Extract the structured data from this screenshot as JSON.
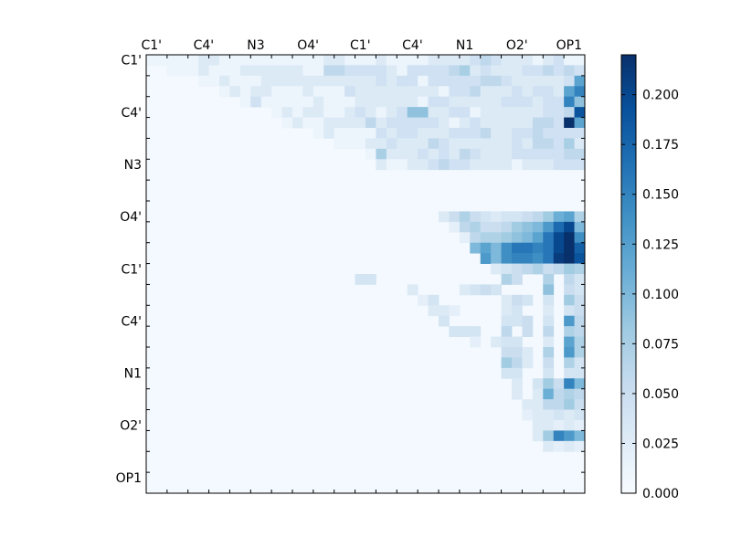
{
  "chart_data": {
    "type": "heatmap",
    "title": "",
    "xlabel": "",
    "ylabel": "",
    "x_tick_labels": [
      "C1'",
      "C4'",
      "N3",
      "O4'",
      "C1'",
      "C4'",
      "N1",
      "O2'",
      "OP1"
    ],
    "y_tick_labels": [
      "C1'",
      "C4'",
      "N3",
      "O4'",
      "C1'",
      "C4'",
      "N1",
      "O2'",
      "OP1"
    ],
    "n_cells": 42,
    "grid": false,
    "colormap": "Blues",
    "colorbar": {
      "vmin": 0.0,
      "vmax": 0.22,
      "tick_labels": [
        "0.000",
        "0.025",
        "0.050",
        "0.075",
        "0.100",
        "0.125",
        "0.150",
        "0.175",
        "0.200"
      ],
      "position": "right"
    },
    "rows": [
      "..12111112211111111112211121111222234322212311",
      "...1112111222222114433332133334523222334343",
      "....1121112222222222232331333334432222238",
      ".....12122111211132222222213342223233289",
      "......131111121112222221332222233323396",
      ".......12122112321236622331222222334A",
      "........121122224233333212322222443B8",
      ".........12111132332223334223343333",
      "..........111223222432222223244352",
      "...........152223232432223333344",
      "............21122343322221222333",
      "................................",
      "................................",
      "................................",
      "................................",
      "................................",
      "................................",
      "................................",
      "................................",
      "................................",
      "................................",
      "................................",
      "................................",
      "................................",
      "................................",
      "................................",
      "................................",
      "................................",
      "................................",
      "................................",
      "................................",
      "................................",
      "................................",
      "................................",
      "................................",
      "................................",
      "................................",
      "................................",
      "................................",
      "................................",
      "................................",
      "................................"
    ],
    "band_rows": {
      "15": "0.004,0.004,0.004,0.004,0.004,0.004,0.004,0.004,0.004,0.004,0.004,0.004,0.004,0.004,0.004,0.004,0.004,0.004,0.004,0.004,0.004,0.004,0.004,0.004,0.004,0.004,0.004,0.004,0.03,0.05,0.07,0.05,0.04,0.03,0.04,0.04,0.05,0.06,0.08,0.11,0.12,0.07",
      "16": "0.004,0.004,0.004,0.004,0.004,0.004,0.004,0.004,0.004,0.004,0.004,0.004,0.004,0.004,0.004,0.004,0.004,0.004,0.004,0.004,0.004,0.004,0.004,0.004,0.004,0.004,0.004,0.004,0.004,0.02,0.06,0.07,0.05,0.05,0.06,0.08,0.09,0.1,0.13,0.17,0.2,0.1",
      "17": "0.004,0.004,0.004,0.004,0.004,0.004,0.004,0.004,0.004,0.004,0.004,0.004,0.004,0.004,0.004,0.004,0.004,0.004,0.004,0.004,0.004,0.004,0.004,0.004,0.004,0.004,0.004,0.004,0.004,0.004,0.02,0.06,0.07,0.07,0.08,0.09,0.1,0.12,0.16,0.2,0.22,0.14",
      "18": "0.004,0.004,0.004,0.004,0.004,0.004,0.004,0.004,0.004,0.004,0.004,0.004,0.004,0.004,0.004,0.004,0.004,0.004,0.004,0.004,0.004,0.004,0.004,0.004,0.004,0.004,0.004,0.004,0.004,0.004,0.004,0.1,0.12,0.1,0.14,0.16,0.16,0.15,0.16,0.2,0.22,0.18",
      "19": "0.004,0.004,0.004,0.004,0.004,0.004,0.004,0.004,0.004,0.004,0.004,0.004,0.004,0.004,0.004,0.004,0.004,0.004,0.004,0.004,0.004,0.004,0.004,0.004,0.004,0.004,0.004,0.004,0.004,0.004,0.004,0.004,0.13,0.1,0.14,0.15,0.15,0.14,0.16,0.21,0.22,0.19",
      "20": "0.004,0.004,0.004,0.004,0.004,0.004,0.004,0.004,0.004,0.004,0.004,0.004,0.004,0.004,0.004,0.004,0.004,0.004,0.004,0.004,0.004,0.004,0.004,0.004,0.004,0.004,0.004,0.004,0.004,0.004,0.004,0.004,0.004,0.03,0.04,0.05,0.06,0.07,0.05,0.06,0.08,0.07"
    },
    "bottom_rows": {
      "21": [
        [
          20,
          0.04
        ],
        [
          21,
          0.04
        ],
        [
          34,
          0.07
        ],
        [
          35,
          0.05
        ],
        [
          38,
          0.07
        ],
        [
          40,
          0.06
        ],
        [
          41,
          0.04
        ]
      ],
      "22": [
        [
          25,
          0.03
        ],
        [
          30,
          0.03
        ],
        [
          31,
          0.04
        ],
        [
          32,
          0.05
        ],
        [
          33,
          0.04
        ],
        [
          38,
          0.09
        ],
        [
          40,
          0.05
        ],
        [
          41,
          0.04
        ]
      ],
      "23": [
        [
          26,
          0.02
        ],
        [
          27,
          0.04
        ],
        [
          34,
          0.03
        ],
        [
          35,
          0.05
        ],
        [
          36,
          0.04
        ],
        [
          38,
          0.04
        ],
        [
          40,
          0.08
        ],
        [
          41,
          0.05
        ]
      ],
      "24": [
        [
          27,
          0.03
        ],
        [
          28,
          0.03
        ],
        [
          29,
          0.02
        ],
        [
          34,
          0.03
        ],
        [
          35,
          0.04
        ],
        [
          38,
          0.03
        ],
        [
          40,
          0.04
        ],
        [
          41,
          0.05
        ]
      ],
      "25": [
        [
          28,
          0.04
        ],
        [
          34,
          0.04
        ],
        [
          35,
          0.04
        ],
        [
          36,
          0.05
        ],
        [
          38,
          0.04
        ],
        [
          40,
          0.13
        ],
        [
          41,
          0.06
        ]
      ],
      "26": [
        [
          29,
          0.04
        ],
        [
          30,
          0.04
        ],
        [
          31,
          0.04
        ],
        [
          34,
          0.06
        ],
        [
          36,
          0.05
        ],
        [
          38,
          0.06
        ],
        [
          40,
          0.07
        ],
        [
          41,
          0.06
        ]
      ],
      "27": [
        [
          31,
          0.02
        ],
        [
          33,
          0.03
        ],
        [
          34,
          0.04
        ],
        [
          35,
          0.04
        ],
        [
          38,
          0.03
        ],
        [
          40,
          0.12
        ],
        [
          41,
          0.07
        ]
      ],
      "28": [
        [
          34,
          0.05
        ],
        [
          35,
          0.05
        ],
        [
          36,
          0.03
        ],
        [
          38,
          0.07
        ],
        [
          40,
          0.13
        ],
        [
          41,
          0.07
        ]
      ],
      "29": [
        [
          34,
          0.08
        ],
        [
          35,
          0.06
        ],
        [
          36,
          0.03
        ],
        [
          38,
          0.05
        ],
        [
          40,
          0.07
        ],
        [
          41,
          0.04
        ]
      ],
      "30": [
        [
          34,
          0.04
        ],
        [
          35,
          0.04
        ],
        [
          38,
          0.04
        ],
        [
          40,
          0.04
        ],
        [
          41,
          0.04
        ]
      ],
      "31": [
        [
          35,
          0.03
        ],
        [
          37,
          0.04
        ],
        [
          38,
          0.08
        ],
        [
          39,
          0.05
        ],
        [
          40,
          0.15
        ],
        [
          41,
          0.1
        ]
      ],
      "32": [
        [
          35,
          0.03
        ],
        [
          37,
          0.03
        ],
        [
          38,
          0.11
        ],
        [
          39,
          0.06
        ],
        [
          40,
          0.07
        ],
        [
          41,
          0.06
        ]
      ],
      "33": [
        [
          36,
          0.03
        ],
        [
          37,
          0.03
        ],
        [
          38,
          0.06
        ],
        [
          39,
          0.06
        ],
        [
          40,
          0.08
        ],
        [
          41,
          0.05
        ]
      ],
      "34": [
        [
          36,
          0.02
        ],
        [
          37,
          0.03
        ],
        [
          38,
          0.03
        ],
        [
          39,
          0.04
        ],
        [
          40,
          0.03
        ],
        [
          41,
          0.04
        ]
      ],
      "35": [
        [
          37,
          0.03
        ],
        [
          38,
          0.03
        ],
        [
          39,
          0.02
        ],
        [
          40,
          0.03
        ],
        [
          41,
          0.02
        ]
      ],
      "36": [
        [
          37,
          0.03
        ],
        [
          38,
          0.08
        ],
        [
          39,
          0.15
        ],
        [
          40,
          0.13
        ],
        [
          41,
          0.1
        ]
      ],
      "37": [
        [
          38,
          0.03
        ],
        [
          39,
          0.02
        ],
        [
          40,
          0.03
        ],
        [
          41,
          0.02
        ]
      ]
    },
    "level_key": {
      ".": 0.004,
      "1": 0.012,
      "2": 0.03,
      "3": 0.045,
      "4": 0.06,
      "5": 0.075,
      "6": 0.09,
      "7": 0.1,
      "8": 0.12,
      "9": 0.15,
      "A": 0.19,
      "B": 0.22
    }
  }
}
